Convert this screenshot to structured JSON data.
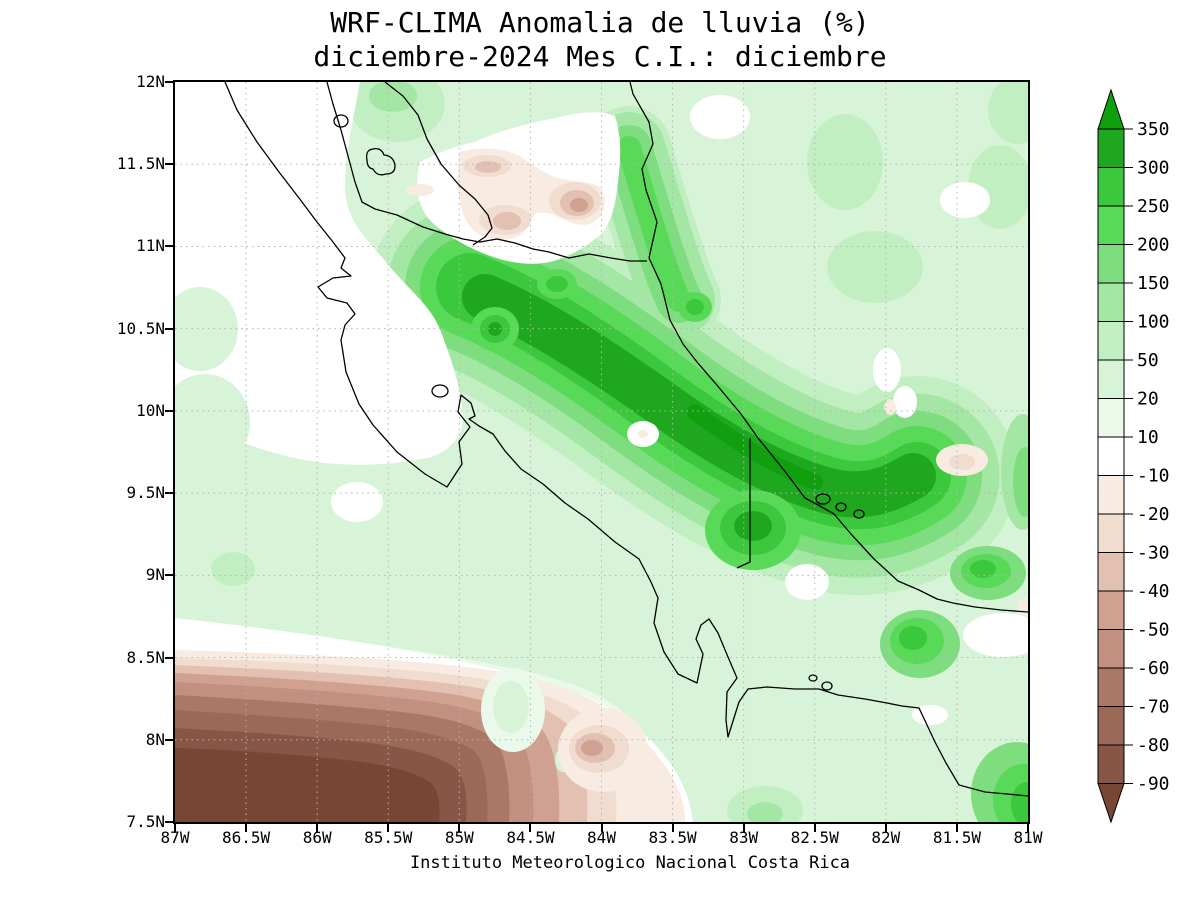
{
  "title": {
    "line1": "WRF-CLIMA Anomalia de lluvia (%)",
    "line2": "diciembre-2024 Mes C.I.: diciembre"
  },
  "footer": "Instituto Meteorologico Nacional Costa Rica",
  "axes": {
    "lat_ticks": [
      "12N",
      "11.5N",
      "11N",
      "10.5N",
      "10N",
      "9.5N",
      "9N",
      "8.5N",
      "8N",
      "7.5N"
    ],
    "lon_ticks": [
      "87W",
      "86.5W",
      "86W",
      "85.5W",
      "85W",
      "84.5W",
      "84W",
      "83.5W",
      "83W",
      "82.5W",
      "82W",
      "81.5W",
      "81W"
    ]
  },
  "colorbar": {
    "labels": [
      "350",
      "300",
      "250",
      "200",
      "150",
      "100",
      "50",
      "20",
      "10",
      "-10",
      "-20",
      "-30",
      "-40",
      "-50",
      "-60",
      "-70",
      "-80",
      "-90"
    ],
    "colors_top_to_bottom": [
      "#0f9f0f",
      "#1fa81f",
      "#3cc83c",
      "#58da58",
      "#7edd7e",
      "#a4e7a4",
      "#c2efc2",
      "#d8f4d8",
      "#eaf9ea",
      "#ffffff",
      "#f7ebe2",
      "#f1dcd0",
      "#e3c1b2",
      "#d0a191",
      "#c19080",
      "#ab7868",
      "#9b6958",
      "#885646",
      "#784634"
    ]
  },
  "palette": {
    "g350": "#0f9f0f",
    "g300": "#1fa81f",
    "g250": "#3cc83c",
    "g200": "#58da58",
    "g150": "#7edd7e",
    "g100": "#a4e7a4",
    "g50": "#c2efc2",
    "g20": "#d8f4d8",
    "g10": "#eaf9ea",
    "w": "#ffffff",
    "b10": "#f7ebe2",
    "b20": "#f1dcd0",
    "b30": "#e3c1b2",
    "b40": "#d0a191",
    "b50": "#c19080",
    "b60": "#ab7868",
    "b70": "#9b6958",
    "b80": "#885646",
    "b90": "#784634",
    "grid": "#b3b3b3",
    "coast": "#000000",
    "frame": "#000000"
  },
  "chart_data": {
    "type": "filled-contour-map",
    "title": "WRF-CLIMA Anomalia de lluvia (%)",
    "subtitle": "diciembre-2024 Mes C.I.: diciembre",
    "units": "%",
    "lon_range": [
      "87W",
      "81W"
    ],
    "lat_range": [
      "7.5N",
      "12N"
    ],
    "lon_tick_step_deg": 0.5,
    "lat_tick_step_deg": 0.5,
    "grid": "dotted",
    "legend_position": "right vertical colorbar with arrow ends",
    "contour_levels": [
      -90,
      -80,
      -70,
      -60,
      -50,
      -40,
      -30,
      -20,
      -10,
      10,
      20,
      50,
      100,
      150,
      200,
      250,
      300,
      350
    ],
    "features": [
      {
        "region": "diagonal band from ~84.7W,10.6N along Caribbean slope to ~82W,9.4N",
        "anomaly": "+200 to +350"
      },
      {
        "region": "Caribbean coastal strip up to ~83.6W,11.6N",
        "anomaly": "+100 to +250"
      },
      {
        "region": "southwest Pacific corner 87-84.5W, 7.5-8.4N",
        "anomaly": "-50 to below -90"
      },
      {
        "region": "northwest Pacific / Guanacaste offshore",
        "anomaly": "-10 to +20 (near normal)"
      },
      {
        "region": "northern lowland spots near 84.8-83.9W, 11.1-11.5N",
        "anomaly": "-20 to -50"
      },
      {
        "region": "spots near 82.4W,9.7N and 84W,8.1N",
        "anomaly": "-20 to -40"
      },
      {
        "region": "dark cells near 82.3W,9.0N / 82.2W,8.6N / 81.2W,7.7N",
        "anomaly": "+150 to +300"
      },
      {
        "region": "most of eastern half elsewhere",
        "anomaly": "+20 to +150"
      }
    ]
  }
}
